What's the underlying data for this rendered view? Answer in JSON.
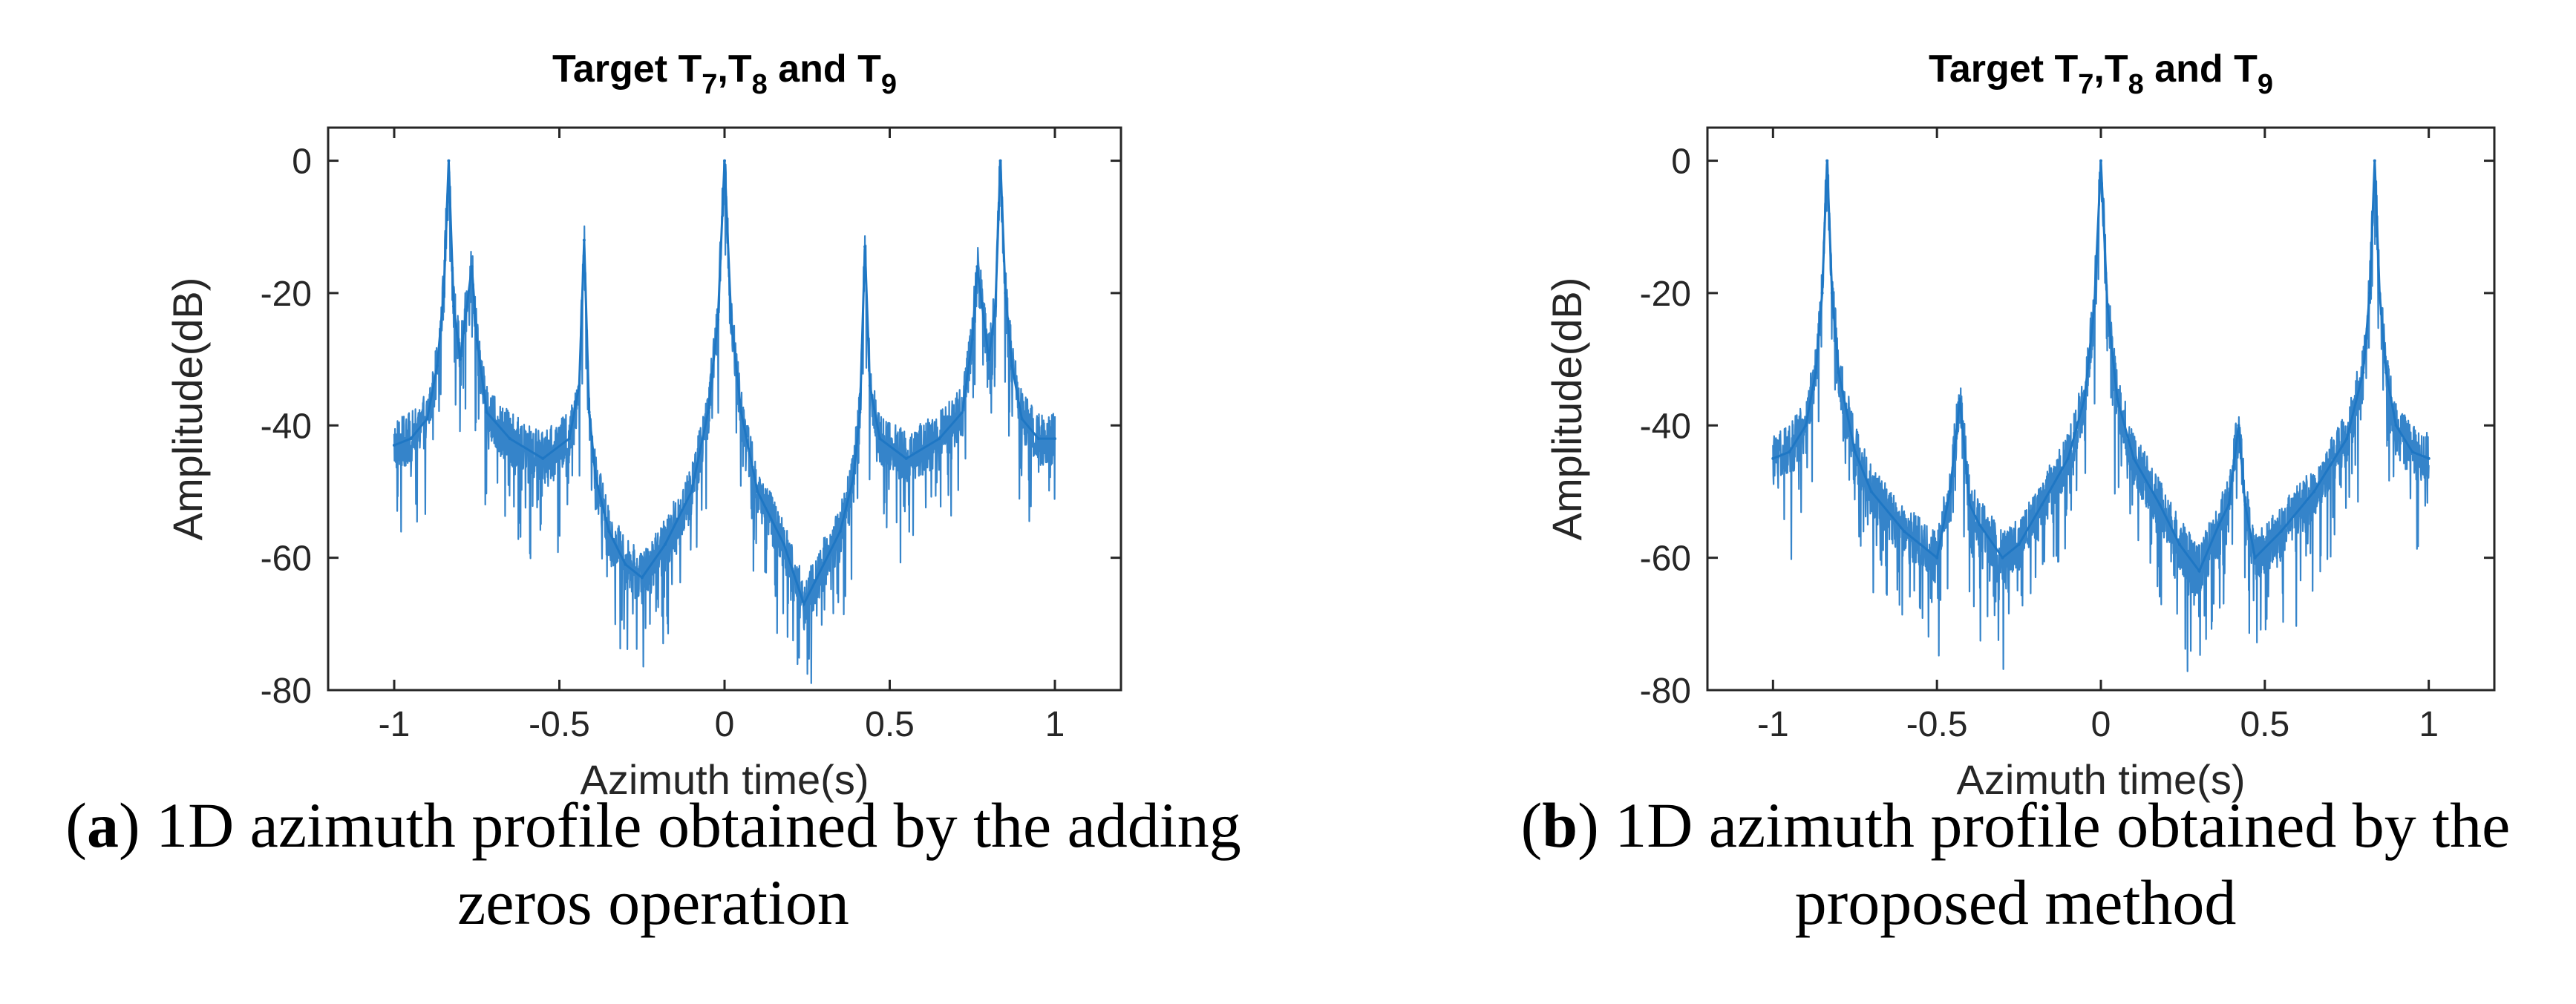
{
  "chart_data": [
    {
      "type": "line",
      "panel_id": "a",
      "title": "Target T7,T8 and T9",
      "title_parts": {
        "prefix": "Target T",
        "s1": "7",
        "mid1": ",T",
        "s2": "8",
        "mid2": " and T",
        "s3": "9"
      },
      "xlabel": "Azimuth time(s)",
      "ylabel": "Amplitude(dB)",
      "xlim": [
        -1.2,
        1.2
      ],
      "ylim": [
        -80,
        5
      ],
      "xticks": [
        -1,
        -0.5,
        0,
        0.5,
        1
      ],
      "xtick_labels": [
        "-1",
        "-0.5",
        "0",
        "0.5",
        "1"
      ],
      "yticks": [
        0,
        -20,
        -40,
        -60,
        -80
      ],
      "ytick_labels": [
        "0",
        "-20",
        "-40",
        "-60",
        "-80"
      ],
      "grid": false,
      "line_color": "#1f77c4",
      "series": [
        {
          "name": "1D azimuth profile (adding zeros)",
          "x": [
            -1.0,
            -0.95,
            -0.9,
            -0.87,
            -0.85,
            -0.835,
            -0.82,
            -0.8,
            -0.78,
            -0.765,
            -0.75,
            -0.72,
            -0.65,
            -0.55,
            -0.47,
            -0.44,
            -0.425,
            -0.41,
            -0.39,
            -0.35,
            -0.3,
            -0.25,
            -0.18,
            -0.1,
            -0.05,
            -0.02,
            0.0,
            0.02,
            0.05,
            0.1,
            0.18,
            0.24,
            0.28,
            0.35,
            0.39,
            0.41,
            0.425,
            0.44,
            0.47,
            0.55,
            0.65,
            0.72,
            0.75,
            0.765,
            0.78,
            0.8,
            0.82,
            0.835,
            0.85,
            0.87,
            0.9,
            0.95,
            1.0
          ],
          "values": [
            -43,
            -42,
            -39,
            -31,
            -20,
            0,
            -22,
            -30,
            -22,
            -16,
            -27,
            -38,
            -42,
            -45,
            -42,
            -34,
            -12,
            -38,
            -48,
            -56,
            -61,
            -63,
            -58,
            -50,
            -38,
            -24,
            0,
            -24,
            -38,
            -50,
            -58,
            -67,
            -63,
            -56,
            -48,
            -38,
            -13,
            -34,
            -42,
            -45,
            -42,
            -38,
            -27,
            -16,
            -22,
            -30,
            -22,
            0,
            -20,
            -31,
            -39,
            -42,
            -42
          ]
        }
      ]
    },
    {
      "type": "line",
      "panel_id": "b",
      "title": "Target T7,T8 and T9",
      "title_parts": {
        "prefix": "Target T",
        "s1": "7",
        "mid1": ",T",
        "s2": "8",
        "mid2": " and T",
        "s3": "9"
      },
      "xlabel": "Azimuth time(s)",
      "ylabel": "Amplitude(dB)",
      "xlim": [
        -1.2,
        1.2
      ],
      "ylim": [
        -80,
        5
      ],
      "xticks": [
        -1,
        -0.5,
        0,
        0.5,
        1
      ],
      "xtick_labels": [
        "-1",
        "-0.5",
        "0",
        "0.5",
        "1"
      ],
      "yticks": [
        0,
        -20,
        -40,
        -60,
        -80
      ],
      "ytick_labels": [
        "0",
        "-20",
        "-40",
        "-60",
        "-80"
      ],
      "grid": false,
      "line_color": "#1f77c4",
      "series": [
        {
          "name": "1D azimuth profile (proposed method)",
          "x": [
            -1.0,
            -0.95,
            -0.9,
            -0.87,
            -0.85,
            -0.835,
            -0.82,
            -0.8,
            -0.75,
            -0.7,
            -0.6,
            -0.5,
            -0.46,
            -0.43,
            -0.4,
            -0.37,
            -0.3,
            -0.25,
            -0.18,
            -0.1,
            -0.05,
            -0.02,
            0.0,
            0.02,
            0.05,
            0.1,
            0.18,
            0.24,
            0.3,
            0.36,
            0.39,
            0.42,
            0.44,
            0.47,
            0.55,
            0.65,
            0.7,
            0.75,
            0.8,
            0.82,
            0.835,
            0.85,
            0.87,
            0.9,
            0.95,
            1.0
          ],
          "values": [
            -45,
            -44,
            -40,
            -32,
            -20,
            0,
            -20,
            -32,
            -44,
            -50,
            -56,
            -60,
            -50,
            -36,
            -52,
            -55,
            -60,
            -58,
            -52,
            -45,
            -36,
            -22,
            0,
            -22,
            -36,
            -45,
            -52,
            -58,
            -62,
            -55,
            -52,
            -40,
            -52,
            -60,
            -56,
            -50,
            -46,
            -42,
            -32,
            -20,
            0,
            -20,
            -32,
            -40,
            -44,
            -45
          ]
        }
      ]
    }
  ],
  "captions": {
    "a": {
      "label": "a",
      "text_before": "(",
      "text_after": ") 1D azimuth profile obtained by the adding",
      "line2": "zeros operation"
    },
    "b": {
      "label": "b",
      "text_before": "(",
      "text_after": ") 1D azimuth profile obtained by the",
      "line2": "proposed method"
    }
  }
}
